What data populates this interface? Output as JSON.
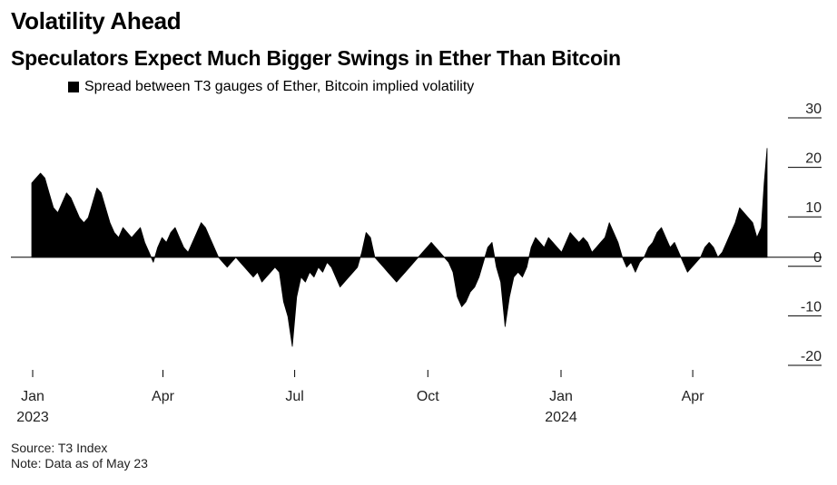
{
  "title": "Volatility Ahead",
  "subtitle": "Speculators Expect Much Bigger Swings in Ether Than Bitcoin",
  "legend": {
    "label": "Spread between T3 gauges of Ether, Bitcoin implied volatility",
    "color": "#000000"
  },
  "footer": {
    "source": "Source: T3 Index",
    "note": "Note: Data as of May 23"
  },
  "chart_data": {
    "type": "area",
    "title": "Volatility Ahead",
    "subtitle": "Speculators Expect Much Bigger Swings in Ether Than Bitcoin",
    "series": [
      {
        "name": "Spread between T3 gauges of Ether, Bitcoin implied volatility",
        "color": "#000000",
        "points": [
          [
            "2023-01-01",
            15
          ],
          [
            "2023-01-04",
            16
          ],
          [
            "2023-01-07",
            17
          ],
          [
            "2023-01-10",
            16
          ],
          [
            "2023-01-13",
            13
          ],
          [
            "2023-01-16",
            10
          ],
          [
            "2023-01-19",
            9
          ],
          [
            "2023-01-22",
            11
          ],
          [
            "2023-01-25",
            13
          ],
          [
            "2023-01-28",
            12
          ],
          [
            "2023-01-31",
            10
          ],
          [
            "2023-02-03",
            8
          ],
          [
            "2023-02-06",
            7
          ],
          [
            "2023-02-09",
            8
          ],
          [
            "2023-02-12",
            11
          ],
          [
            "2023-02-15",
            14
          ],
          [
            "2023-02-18",
            13
          ],
          [
            "2023-02-21",
            10
          ],
          [
            "2023-02-24",
            7
          ],
          [
            "2023-02-27",
            5
          ],
          [
            "2023-03-02",
            4
          ],
          [
            "2023-03-05",
            6
          ],
          [
            "2023-03-08",
            5
          ],
          [
            "2023-03-11",
            4
          ],
          [
            "2023-03-14",
            5
          ],
          [
            "2023-03-17",
            6
          ],
          [
            "2023-03-20",
            3
          ],
          [
            "2023-03-23",
            1
          ],
          [
            "2023-03-26",
            -1
          ],
          [
            "2023-03-29",
            2
          ],
          [
            "2023-04-01",
            4
          ],
          [
            "2023-04-04",
            3
          ],
          [
            "2023-04-07",
            5
          ],
          [
            "2023-04-10",
            6
          ],
          [
            "2023-04-13",
            4
          ],
          [
            "2023-04-16",
            2
          ],
          [
            "2023-04-19",
            1
          ],
          [
            "2023-04-22",
            3
          ],
          [
            "2023-04-25",
            5
          ],
          [
            "2023-04-28",
            7
          ],
          [
            "2023-05-01",
            6
          ],
          [
            "2023-05-04",
            4
          ],
          [
            "2023-05-07",
            2
          ],
          [
            "2023-05-10",
            0
          ],
          [
            "2023-05-13",
            -1
          ],
          [
            "2023-05-16",
            -2
          ],
          [
            "2023-05-19",
            -1
          ],
          [
            "2023-05-22",
            0
          ],
          [
            "2023-05-25",
            -1
          ],
          [
            "2023-05-28",
            -2
          ],
          [
            "2023-05-31",
            -3
          ],
          [
            "2023-06-03",
            -4
          ],
          [
            "2023-06-06",
            -3
          ],
          [
            "2023-06-09",
            -5
          ],
          [
            "2023-06-12",
            -4
          ],
          [
            "2023-06-15",
            -3
          ],
          [
            "2023-06-18",
            -2
          ],
          [
            "2023-06-21",
            -3
          ],
          [
            "2023-06-24",
            -9
          ],
          [
            "2023-06-27",
            -12
          ],
          [
            "2023-06-30",
            -18
          ],
          [
            "2023-07-03",
            -8
          ],
          [
            "2023-07-06",
            -4
          ],
          [
            "2023-07-09",
            -5
          ],
          [
            "2023-07-12",
            -3
          ],
          [
            "2023-07-15",
            -4
          ],
          [
            "2023-07-18",
            -2
          ],
          [
            "2023-07-21",
            -3
          ],
          [
            "2023-07-24",
            -1
          ],
          [
            "2023-07-27",
            -2
          ],
          [
            "2023-07-30",
            -4
          ],
          [
            "2023-08-02",
            -6
          ],
          [
            "2023-08-05",
            -5
          ],
          [
            "2023-08-08",
            -4
          ],
          [
            "2023-08-11",
            -3
          ],
          [
            "2023-08-14",
            -2
          ],
          [
            "2023-08-17",
            1
          ],
          [
            "2023-08-20",
            5
          ],
          [
            "2023-08-23",
            4
          ],
          [
            "2023-08-26",
            0
          ],
          [
            "2023-08-29",
            -1
          ],
          [
            "2023-09-01",
            -2
          ],
          [
            "2023-09-04",
            -3
          ],
          [
            "2023-09-07",
            -4
          ],
          [
            "2023-09-10",
            -5
          ],
          [
            "2023-09-13",
            -4
          ],
          [
            "2023-09-16",
            -3
          ],
          [
            "2023-09-19",
            -2
          ],
          [
            "2023-09-22",
            -1
          ],
          [
            "2023-09-25",
            0
          ],
          [
            "2023-09-28",
            1
          ],
          [
            "2023-10-01",
            2
          ],
          [
            "2023-10-04",
            3
          ],
          [
            "2023-10-07",
            2
          ],
          [
            "2023-10-10",
            1
          ],
          [
            "2023-10-13",
            0
          ],
          [
            "2023-10-16",
            -1
          ],
          [
            "2023-10-19",
            -3
          ],
          [
            "2023-10-22",
            -8
          ],
          [
            "2023-10-25",
            -10
          ],
          [
            "2023-10-28",
            -9
          ],
          [
            "2023-10-31",
            -7
          ],
          [
            "2023-11-03",
            -6
          ],
          [
            "2023-11-06",
            -4
          ],
          [
            "2023-11-09",
            -1
          ],
          [
            "2023-11-12",
            2
          ],
          [
            "2023-11-15",
            3
          ],
          [
            "2023-11-18",
            -2
          ],
          [
            "2023-11-21",
            -5
          ],
          [
            "2023-11-24",
            -14
          ],
          [
            "2023-11-27",
            -8
          ],
          [
            "2023-11-30",
            -4
          ],
          [
            "2023-12-03",
            -3
          ],
          [
            "2023-12-06",
            -4
          ],
          [
            "2023-12-09",
            -2
          ],
          [
            "2023-12-12",
            2
          ],
          [
            "2023-12-15",
            4
          ],
          [
            "2023-12-18",
            3
          ],
          [
            "2023-12-21",
            2
          ],
          [
            "2023-12-24",
            4
          ],
          [
            "2023-12-27",
            3
          ],
          [
            "2023-12-30",
            2
          ],
          [
            "2024-01-02",
            1
          ],
          [
            "2024-01-05",
            3
          ],
          [
            "2024-01-08",
            5
          ],
          [
            "2024-01-11",
            4
          ],
          [
            "2024-01-14",
            3
          ],
          [
            "2024-01-17",
            4
          ],
          [
            "2024-01-20",
            3
          ],
          [
            "2024-01-23",
            1
          ],
          [
            "2024-01-26",
            2
          ],
          [
            "2024-01-29",
            3
          ],
          [
            "2024-02-01",
            4
          ],
          [
            "2024-02-04",
            7
          ],
          [
            "2024-02-07",
            5
          ],
          [
            "2024-02-10",
            3
          ],
          [
            "2024-02-13",
            0
          ],
          [
            "2024-02-16",
            -2
          ],
          [
            "2024-02-19",
            -1
          ],
          [
            "2024-02-22",
            -3
          ],
          [
            "2024-02-25",
            -1
          ],
          [
            "2024-02-28",
            0
          ],
          [
            "2024-03-02",
            2
          ],
          [
            "2024-03-05",
            3
          ],
          [
            "2024-03-08",
            5
          ],
          [
            "2024-03-11",
            6
          ],
          [
            "2024-03-14",
            4
          ],
          [
            "2024-03-17",
            2
          ],
          [
            "2024-03-20",
            3
          ],
          [
            "2024-03-23",
            1
          ],
          [
            "2024-03-26",
            -1
          ],
          [
            "2024-03-29",
            -3
          ],
          [
            "2024-04-01",
            -2
          ],
          [
            "2024-04-04",
            -1
          ],
          [
            "2024-04-07",
            0
          ],
          [
            "2024-04-10",
            2
          ],
          [
            "2024-04-13",
            3
          ],
          [
            "2024-04-16",
            2
          ],
          [
            "2024-04-19",
            0
          ],
          [
            "2024-04-22",
            1
          ],
          [
            "2024-04-25",
            3
          ],
          [
            "2024-04-28",
            5
          ],
          [
            "2024-05-01",
            7
          ],
          [
            "2024-05-04",
            10
          ],
          [
            "2024-05-07",
            9
          ],
          [
            "2024-05-10",
            8
          ],
          [
            "2024-05-13",
            7
          ],
          [
            "2024-05-16",
            4
          ],
          [
            "2024-05-19",
            6
          ],
          [
            "2024-05-21",
            15
          ],
          [
            "2024-05-23",
            22
          ]
        ]
      }
    ],
    "x_ticks": [
      {
        "date": "2023-01-01",
        "label": "Jan",
        "year": "2023"
      },
      {
        "date": "2023-04-01",
        "label": "Apr",
        "year": ""
      },
      {
        "date": "2023-07-01",
        "label": "Jul",
        "year": ""
      },
      {
        "date": "2023-10-01",
        "label": "Oct",
        "year": ""
      },
      {
        "date": "2024-01-01",
        "label": "Jan",
        "year": "2024"
      },
      {
        "date": "2024-04-01",
        "label": "Apr",
        "year": ""
      }
    ],
    "y_ticks": [
      30,
      20,
      10,
      0,
      -10,
      -20
    ],
    "ylim": [
      -20,
      30
    ],
    "xlim": [
      "2023-01-01",
      "2024-05-23"
    ],
    "y_axis_position": "right",
    "grid": false,
    "legend_position": "top-left"
  }
}
